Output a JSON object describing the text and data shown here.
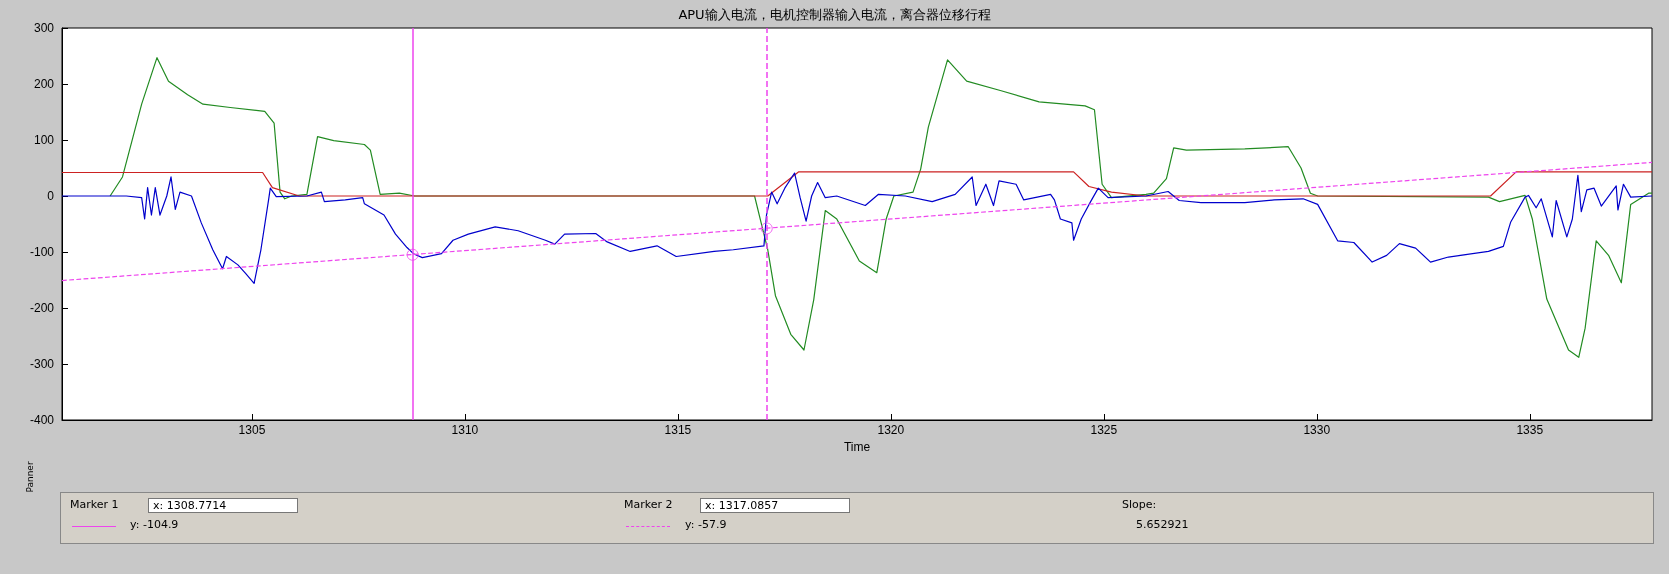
{
  "chart_data": {
    "type": "line",
    "title": "APU输入电流，电机控制器输入电流，离合器位移行程",
    "xlabel": "Time",
    "xlim": [
      1300.54,
      1337.87
    ],
    "xticks": [
      1305,
      1310,
      1315,
      1320,
      1325,
      1330,
      1335
    ],
    "ylim": [
      -400,
      300
    ],
    "yticks": [
      -400,
      -300,
      -200,
      -100,
      0,
      100,
      200,
      300
    ],
    "grid": false,
    "marker": "none",
    "line_style": "solid",
    "series": [
      {
        "color": "#228b22",
        "x": [
          1301.67,
          1301.96,
          1302.41,
          1302.77,
          1303.04,
          1303.49,
          1303.85,
          1304.49,
          1305.3,
          1305.52,
          1305.66,
          1305.77,
          1305.93,
          1306.29,
          1306.54,
          1306.92,
          1307.64,
          1307.78,
          1308.01,
          1308.46,
          1308.82,
          1316.8,
          1317.11,
          1317.29,
          1317.65,
          1317.96,
          1318.19,
          1318.46,
          1318.73,
          1319.26,
          1319.67,
          1319.89,
          1320.07,
          1320.52,
          1320.7,
          1320.88,
          1321.33,
          1321.78,
          1322.59,
          1323.48,
          1324.56,
          1324.78,
          1324.96,
          1325.18,
          1325.99,
          1326.17,
          1326.47,
          1326.64,
          1326.94,
          1328.31,
          1329.33,
          1329.63,
          1329.85,
          1330.02,
          1334.03,
          1334.29,
          1334.89,
          1335.06,
          1335.4,
          1335.91,
          1336.15,
          1336.3,
          1336.56,
          1336.85,
          1337.15,
          1337.37,
          1337.79,
          1337.87
        ],
        "values": [
          0,
          34,
          164,
          247,
          205,
          181,
          164,
          158,
          151,
          130,
          7,
          -5,
          0,
          3,
          106,
          99,
          92,
          82,
          3,
          5,
          0,
          0,
          -96,
          -178,
          -247,
          -275,
          -185,
          -26,
          -41,
          -116,
          -137,
          -41,
          0,
          7,
          48,
          123,
          243,
          205,
          188,
          168,
          161,
          154,
          21,
          -3,
          3,
          5,
          31,
          86,
          82,
          84,
          88,
          50,
          5,
          0,
          -2,
          -10,
          1,
          -41,
          -184,
          -275,
          -288,
          -236,
          -80,
          -106,
          -155,
          -15,
          5,
          5
        ]
      },
      {
        "color": "#cc2222",
        "x": [
          1300.54,
          1305.25,
          1305.48,
          1306.11,
          1317.11,
          1317.83,
          1324.29,
          1324.65,
          1325.18,
          1325.99,
          1334.08,
          1334.68,
          1337.87
        ],
        "values": [
          42,
          42,
          15,
          0,
          0,
          43,
          43,
          17,
          7,
          0,
          0,
          43,
          43
        ]
      },
      {
        "color": "#0000cc",
        "x": [
          1300.54,
          1302.05,
          1302.41,
          1302.48,
          1302.55,
          1302.64,
          1302.73,
          1302.84,
          1303.0,
          1303.1,
          1303.2,
          1303.31,
          1303.58,
          1303.81,
          1304.08,
          1304.31,
          1304.4,
          1304.67,
          1304.85,
          1305.05,
          1305.21,
          1305.39,
          1305.43,
          1305.57,
          1306.29,
          1306.63,
          1306.7,
          1307.19,
          1307.6,
          1307.64,
          1308.1,
          1308.37,
          1308.64,
          1308.79,
          1309.0,
          1309.45,
          1309.72,
          1310.08,
          1310.71,
          1311.25,
          1311.89,
          1312.11,
          1312.34,
          1313.07,
          1313.34,
          1313.88,
          1314.51,
          1314.96,
          1315.85,
          1316.3,
          1317.02,
          1317.08,
          1317.2,
          1317.33,
          1317.51,
          1317.74,
          1317.87,
          1318.01,
          1318.14,
          1318.28,
          1318.46,
          1318.73,
          1319.4,
          1319.71,
          1320.34,
          1320.97,
          1321.51,
          1321.91,
          1322.0,
          1322.23,
          1322.41,
          1322.54,
          1322.94,
          1323.12,
          1323.75,
          1323.84,
          1323.98,
          1324.25,
          1324.29,
          1324.47,
          1324.69,
          1324.87,
          1325.1,
          1325.99,
          1326.51,
          1326.77,
          1327.28,
          1328.31,
          1329.0,
          1329.68,
          1330.02,
          1330.49,
          1330.87,
          1331.3,
          1331.64,
          1331.94,
          1332.32,
          1332.67,
          1333.09,
          1334.03,
          1334.38,
          1334.55,
          1334.89,
          1334.97,
          1335.15,
          1335.27,
          1335.53,
          1335.62,
          1335.87,
          1336.0,
          1336.13,
          1336.21,
          1336.34,
          1336.51,
          1336.68,
          1337.03,
          1337.07,
          1337.2,
          1337.37,
          1337.87
        ],
        "values": [
          0,
          0,
          -3,
          -41,
          15,
          -34,
          15,
          -34,
          0,
          34,
          -24,
          7,
          0,
          -48,
          -96,
          -130,
          -108,
          -123,
          -138,
          -156,
          -96,
          -7,
          14,
          -1,
          0,
          7,
          -10,
          -7,
          -3,
          -14,
          -34,
          -68,
          -92,
          -103,
          -110,
          -103,
          -79,
          -68,
          -55,
          -62,
          -79,
          -86,
          -68,
          -67,
          -82,
          -99,
          -89,
          -108,
          -99,
          -96,
          -89,
          -34,
          7,
          -14,
          14,
          41,
          -3,
          -45,
          0,
          24,
          -3,
          0,
          -17,
          3,
          0,
          -10,
          3,
          34,
          -17,
          21,
          -17,
          27,
          21,
          -7,
          3,
          -7,
          -41,
          -48,
          -79,
          -41,
          -10,
          14,
          -3,
          0,
          8,
          -8,
          -12,
          -12,
          -7,
          -5,
          -15,
          -80,
          -83,
          -118,
          -106,
          -85,
          -93,
          -118,
          -109,
          -99,
          -90,
          -47,
          -2,
          1,
          -21,
          -5,
          -73,
          -8,
          -73,
          -41,
          37,
          -28,
          11,
          14,
          -18,
          18,
          -25,
          21,
          -2,
          0
        ]
      },
      {
        "color": "#ee44ee",
        "line_style": "dashed",
        "x": [
          1300.54,
          1337.87
        ],
        "values": [
          -151,
          60
        ]
      },
      {
        "type": "scatter",
        "marker": "circle",
        "color": "#ee44ee",
        "x": [
          1308.7714,
          1317.0857
        ],
        "values": [
          -104.9,
          -57.9
        ]
      }
    ],
    "ref_lines": [
      {
        "axis": "x",
        "value": 1308.7714,
        "color": "#ee44ee",
        "line_style": "solid"
      },
      {
        "axis": "x",
        "value": 1317.0857,
        "color": "#ee44ee",
        "line_style": "dashed"
      }
    ],
    "annotations": [
      "Panner",
      "Marker 1",
      "x: 1308.7714",
      "y: -104.9",
      "Marker 2",
      "x: 1317.0857",
      "y: -57.9",
      "Slope:",
      "5.652921"
    ]
  }
}
